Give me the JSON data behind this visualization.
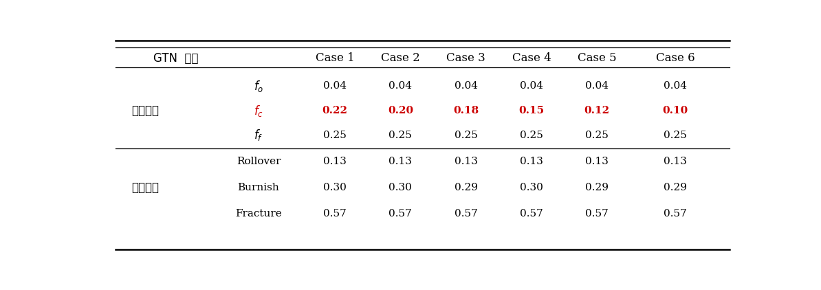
{
  "col_headers": [
    "GTN 모델",
    "Case 1",
    "Case 2",
    "Case 3",
    "Case 4",
    "Case 5",
    "Case 6"
  ],
  "row_group1_label": "재료변수",
  "row_group2_label": "상대길이",
  "rows": [
    {
      "param": "f_o",
      "values": [
        "0.04",
        "0.04",
        "0.04",
        "0.04",
        "0.04",
        "0.04"
      ],
      "red": false
    },
    {
      "param": "f_c",
      "values": [
        "0.22",
        "0.20",
        "0.18",
        "0.15",
        "0.12",
        "0.10"
      ],
      "red": true
    },
    {
      "param": "f_f",
      "values": [
        "0.25",
        "0.25",
        "0.25",
        "0.25",
        "0.25",
        "0.25"
      ],
      "red": false
    },
    {
      "param": "Rollover",
      "values": [
        "0.13",
        "0.13",
        "0.13",
        "0.13",
        "0.13",
        "0.13"
      ],
      "red": false
    },
    {
      "param": "Burnish",
      "values": [
        "0.30",
        "0.30",
        "0.29",
        "0.30",
        "0.29",
        "0.29"
      ],
      "red": false
    },
    {
      "param": "Fracture",
      "values": [
        "0.57",
        "0.57",
        "0.57",
        "0.57",
        "0.57",
        "0.57"
      ],
      "red": false
    }
  ],
  "normal_color": "#000000",
  "red_color": "#cc0000",
  "bg_color": "#ffffff"
}
